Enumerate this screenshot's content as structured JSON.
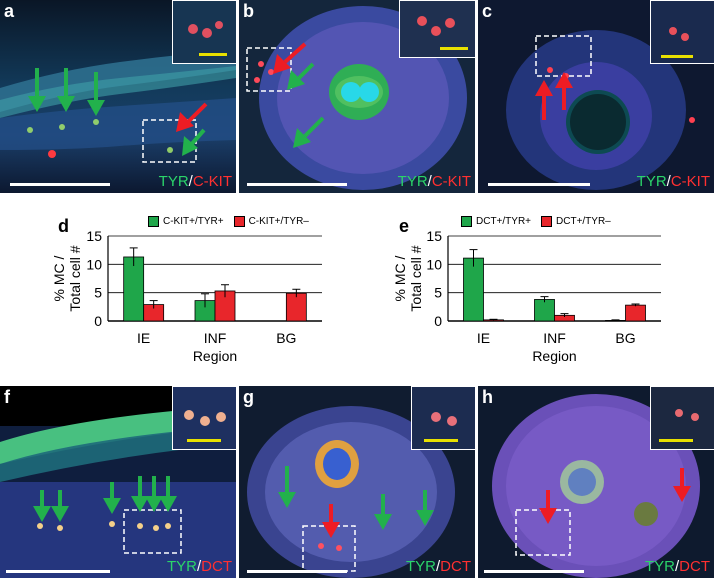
{
  "panels": {
    "a": {
      "label": "a",
      "stain_green": "TYR",
      "stain_sep": "/",
      "stain_red": "C-KIT"
    },
    "b": {
      "label": "b",
      "stain_green": "TYR",
      "stain_sep": "/",
      "stain_red": "C-KIT"
    },
    "c": {
      "label": "c",
      "stain_green": "TYR",
      "stain_sep": "/",
      "stain_red": "C-KIT"
    },
    "f": {
      "label": "f",
      "stain_green": "TYR",
      "stain_sep": "/",
      "stain_red": "DCT"
    },
    "g": {
      "label": "g",
      "stain_green": "TYR",
      "stain_sep": "/",
      "stain_red": "DCT"
    },
    "h": {
      "label": "h",
      "stain_green": "TYR",
      "stain_sep": "/",
      "stain_red": "DCT"
    }
  },
  "colors": {
    "green": "#1fa64a",
    "red": "#e8262b",
    "arrow_green": "#22b14c",
    "arrow_red": "#ed1c24"
  },
  "chart_data": [
    {
      "panel": "d",
      "type": "bar",
      "title": "",
      "xlabel": "Region",
      "ylabel": "% MC / Total cell #",
      "ylim": [
        0,
        15
      ],
      "yticks": [
        0,
        5,
        10,
        15
      ],
      "categories": [
        "IE",
        "INF",
        "BG"
      ],
      "legend_position": "top",
      "grid": true,
      "series": [
        {
          "name": "C-KIT+/TYR+",
          "values": [
            11.3,
            3.6,
            0
          ],
          "errors": [
            1.6,
            1.2,
            0
          ]
        },
        {
          "name": "C-KIT+/TYR–",
          "values": [
            2.9,
            5.3,
            4.9
          ],
          "errors": [
            0.7,
            1.1,
            0.7
          ]
        }
      ]
    },
    {
      "panel": "e",
      "type": "bar",
      "title": "",
      "xlabel": "Region",
      "ylabel": "% MC / Total cell #",
      "ylim": [
        0,
        15
      ],
      "yticks": [
        0,
        5,
        10,
        15
      ],
      "categories": [
        "IE",
        "INF",
        "BG"
      ],
      "legend_position": "top",
      "grid": true,
      "series": [
        {
          "name": "DCT+/TYR+",
          "values": [
            11.1,
            3.8,
            0.1
          ],
          "errors": [
            1.5,
            0.5,
            0.1
          ]
        },
        {
          "name": "DCT+/TYR–",
          "values": [
            0.2,
            1.0,
            2.8
          ],
          "errors": [
            0.1,
            0.3,
            0.2
          ]
        }
      ]
    }
  ],
  "chart_panels": {
    "d": "d",
    "e": "e"
  }
}
